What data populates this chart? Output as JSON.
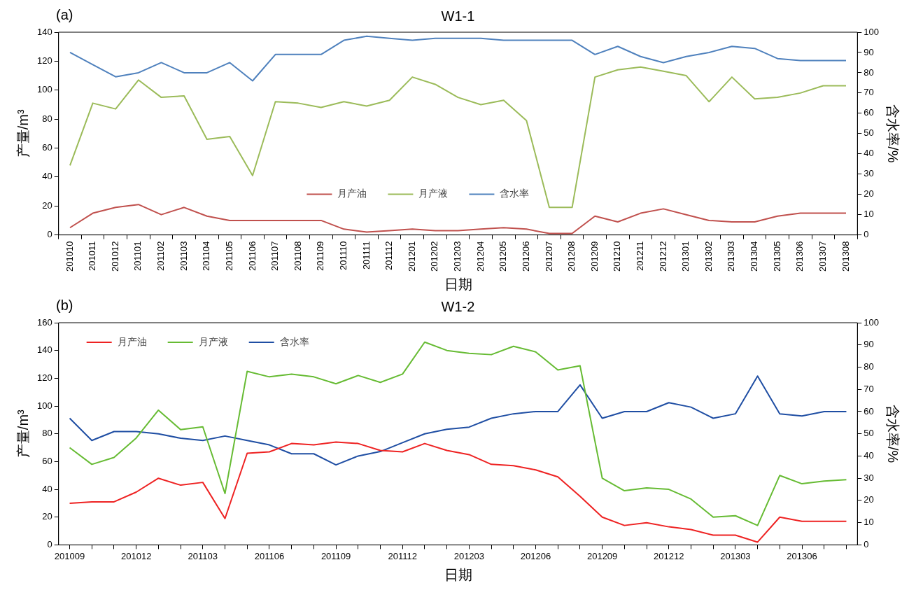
{
  "chart_data": [
    {
      "type": "line",
      "title": "W1-1",
      "annotations": [
        "(a)"
      ],
      "xlabel": "日期",
      "ylabel": "产量/m³",
      "y2label": "含水率/%",
      "categories": [
        "201010",
        "201011",
        "201012",
        "201101",
        "201102",
        "201103",
        "201104",
        "201105",
        "201106",
        "201107",
        "201108",
        "201109",
        "201110",
        "201111",
        "201112",
        "201201",
        "201202",
        "201203",
        "201204",
        "201205",
        "201206",
        "201207",
        "201208",
        "201209",
        "201210",
        "201211",
        "201212",
        "201301",
        "201302",
        "201303",
        "201304",
        "201305",
        "201306",
        "201307",
        "201308"
      ],
      "series": [
        {
          "name": "月产油",
          "color": "#c0504d",
          "axis": "y",
          "values": [
            5,
            15,
            19,
            21,
            14,
            19,
            13,
            10,
            10,
            10,
            10,
            10,
            4,
            2,
            3,
            4,
            3,
            3,
            4,
            5,
            4,
            1,
            1,
            13,
            9,
            15,
            18,
            14,
            10,
            9,
            9,
            13,
            15,
            15,
            15
          ]
        },
        {
          "name": "月产液",
          "color": "#9bbb59",
          "axis": "y",
          "values": [
            48,
            91,
            87,
            107,
            95,
            96,
            66,
            68,
            41,
            92,
            91,
            88,
            92,
            89,
            93,
            109,
            104,
            95,
            90,
            93,
            79,
            19,
            19,
            109,
            114,
            116,
            113,
            110,
            92,
            109,
            94,
            95,
            98,
            103,
            103
          ]
        },
        {
          "name": "含水率",
          "color": "#4f81bd",
          "axis": "y2",
          "values": [
            90,
            84,
            78,
            80,
            85,
            80,
            80,
            85,
            76,
            89,
            89,
            89,
            96,
            98,
            97,
            96,
            97,
            97,
            97,
            96,
            96,
            96,
            96,
            89,
            93,
            88,
            85,
            88,
            90,
            93,
            92,
            87,
            86,
            86,
            86
          ]
        }
      ],
      "ylim": [
        0,
        140
      ],
      "yticks": [
        0,
        20,
        40,
        60,
        80,
        100,
        120,
        140
      ],
      "y2lim": [
        0,
        100
      ],
      "y2ticks": [
        0,
        10,
        20,
        30,
        40,
        50,
        60,
        70,
        80,
        90,
        100
      ],
      "legend": "bottom",
      "grid": false,
      "marker": "none",
      "line_style": "solid"
    },
    {
      "type": "line",
      "title": "W1-2",
      "annotations": [
        "(b)"
      ],
      "xlabel": "日期",
      "ylabel": "产量/m³",
      "y2label": "含水率/%",
      "categories": [
        "201009",
        null,
        null,
        "201012",
        null,
        null,
        "201103",
        null,
        null,
        "201106",
        null,
        null,
        "201109",
        null,
        null,
        "201112",
        null,
        null,
        "201203",
        null,
        null,
        "201206",
        null,
        null,
        "201209",
        null,
        null,
        "201212",
        null,
        null,
        "201303",
        null,
        null,
        "201306",
        null,
        null
      ],
      "series": [
        {
          "name": "月产油",
          "color": "#ee2222",
          "axis": "y",
          "values": [
            30,
            31,
            31,
            38,
            48,
            43,
            45,
            19,
            66,
            67,
            73,
            72,
            74,
            73,
            68,
            67,
            73,
            68,
            65,
            58,
            57,
            54,
            49,
            35,
            20,
            14,
            16,
            13,
            11,
            7,
            7,
            2,
            20,
            17,
            17,
            17
          ]
        },
        {
          "name": "月产液",
          "color": "#66bb33",
          "axis": "y",
          "values": [
            70,
            58,
            63,
            77,
            97,
            83,
            85,
            37,
            125,
            121,
            123,
            121,
            116,
            122,
            117,
            123,
            146,
            140,
            138,
            137,
            143,
            139,
            126,
            129,
            48,
            39,
            41,
            40,
            33,
            20,
            21,
            14,
            50,
            44,
            46,
            47
          ]
        },
        {
          "name": "含水率",
          "color": "#1f4ea3",
          "axis": "y2",
          "values": [
            57,
            47,
            51,
            51,
            50,
            48,
            47,
            49,
            47,
            45,
            41,
            41,
            36,
            40,
            42,
            46,
            50,
            52,
            53,
            57,
            59,
            60,
            60,
            72,
            57,
            60,
            60,
            64,
            62,
            57,
            59,
            76,
            59,
            58,
            60,
            60
          ]
        }
      ],
      "ylim": [
        0,
        160
      ],
      "yticks": [
        0,
        20,
        40,
        60,
        80,
        100,
        120,
        140,
        160
      ],
      "y2lim": [
        0,
        100
      ],
      "y2ticks": [
        0,
        10,
        20,
        30,
        40,
        50,
        60,
        70,
        80,
        90,
        100
      ],
      "legend": "top left",
      "grid": false,
      "marker": "none",
      "line_style": "solid"
    }
  ]
}
